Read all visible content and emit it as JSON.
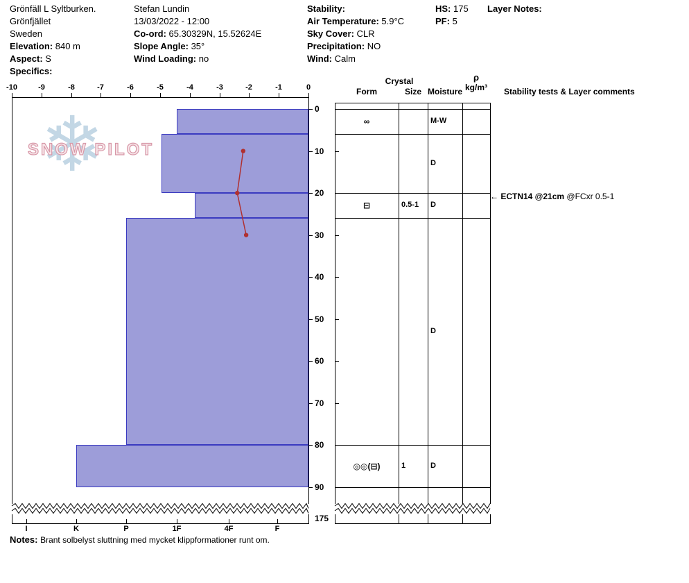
{
  "header": {
    "columns": [
      {
        "rows": [
          {
            "label": "",
            "value": "Grönfäll L Syltburken."
          },
          {
            "label": "",
            "value": "Grönfjället"
          },
          {
            "label": "",
            "value": "Sweden"
          },
          {
            "label": "Elevation:",
            "value": "840 m"
          },
          {
            "label": "Aspect:",
            "value": "S"
          },
          {
            "label": "Specifics:",
            "value": ""
          }
        ]
      },
      {
        "rows": [
          {
            "label": "",
            "value": "Stefan Lundin"
          },
          {
            "label": "",
            "value": "13/03/2022 - 12:00"
          },
          {
            "label": "Co-ord:",
            "value": "65.30329N, 15.52624E"
          },
          {
            "label": "Slope Angle:",
            "value": "35°"
          },
          {
            "label": "Wind Loading:",
            "value": "no"
          }
        ]
      },
      {
        "rows": [
          {
            "label": "Stability:",
            "value": ""
          },
          {
            "label": "Air Temperature:",
            "value": "5.9°C"
          },
          {
            "label": "Sky Cover:",
            "value": "CLR"
          },
          {
            "label": "Precipitation:",
            "value": "NO"
          },
          {
            "label": "Wind:",
            "value": "Calm"
          }
        ]
      },
      {
        "rows": [
          {
            "label": "HS:",
            "value": "175"
          },
          {
            "label": "PF:",
            "value": "5"
          }
        ]
      },
      {
        "rows": [
          {
            "label": "Layer Notes:",
            "value": ""
          }
        ]
      }
    ]
  },
  "table": {
    "crystal_header": "Crystal",
    "form_header": "Form",
    "size_header": "Size",
    "moisture_header": "Moisture",
    "rho_symbol": "ρ",
    "rho_units": "kg/m³",
    "stability_header": "Stability tests & Layer comments"
  },
  "chart_data": {
    "type": "bar",
    "title": "Snow pit profile: hand hardness vs depth (cm) with snow temperature trace (°C)",
    "temp_axis": {
      "min": -10,
      "max": 0,
      "tick_labels": [
        "-10",
        "-9",
        "-8",
        "-7",
        "-6",
        "-5",
        "-4",
        "-3",
        "-2",
        "-1",
        "0"
      ]
    },
    "depth_axis": {
      "ticks": [
        0,
        10,
        20,
        30,
        40,
        50,
        60,
        70,
        80,
        90
      ],
      "break_label": "175",
      "units": "cm"
    },
    "hardness_axis": {
      "labels": [
        "I",
        "K",
        "P",
        "1F",
        "4F",
        "F"
      ],
      "codes": [
        6,
        5,
        4,
        3,
        2,
        1
      ]
    },
    "layers": [
      {
        "top_cm": 0,
        "bottom_cm": 6,
        "hardness": "1F",
        "hardness_code": 3.0,
        "form": "∞",
        "size": "",
        "moisture": "M-W"
      },
      {
        "top_cm": 6,
        "bottom_cm": 20,
        "hardness": "1F+",
        "hardness_code": 3.3,
        "form": "",
        "size": "",
        "moisture": "D"
      },
      {
        "top_cm": 20,
        "bottom_cm": 26,
        "hardness": "4F+",
        "hardness_code": 2.65,
        "form": "⊟",
        "size": "0.5-1",
        "moisture": "D"
      },
      {
        "top_cm": 26,
        "bottom_cm": 80,
        "hardness": "P",
        "hardness_code": 4.0,
        "form": "",
        "size": "",
        "moisture": "D"
      },
      {
        "top_cm": 80,
        "bottom_cm": 90,
        "hardness": "K",
        "hardness_code": 5.0,
        "form": "◎◎(⊟)",
        "size": "1",
        "moisture": "D"
      }
    ],
    "temperature_series": {
      "points": [
        {
          "depth_cm": 10,
          "temp_c": -2.2
        },
        {
          "depth_cm": 20,
          "temp_c": -2.4
        },
        {
          "depth_cm": 30,
          "temp_c": -2.1
        }
      ]
    },
    "colors": {
      "bar_fill": "#9d9dd9",
      "bar_stroke": "#3a3ac0",
      "temp_line": "#b03030"
    }
  },
  "annotations": [
    {
      "depth_cm": 21,
      "bold": "ECTN14 @21cm",
      "text": "@FCxr 0.5-1"
    }
  ],
  "watermark": {
    "text": "SNOW PILOT"
  },
  "notes": {
    "label": "Notes:",
    "text": "Brant solbelyst sluttning med mycket klippformationer runt om."
  }
}
